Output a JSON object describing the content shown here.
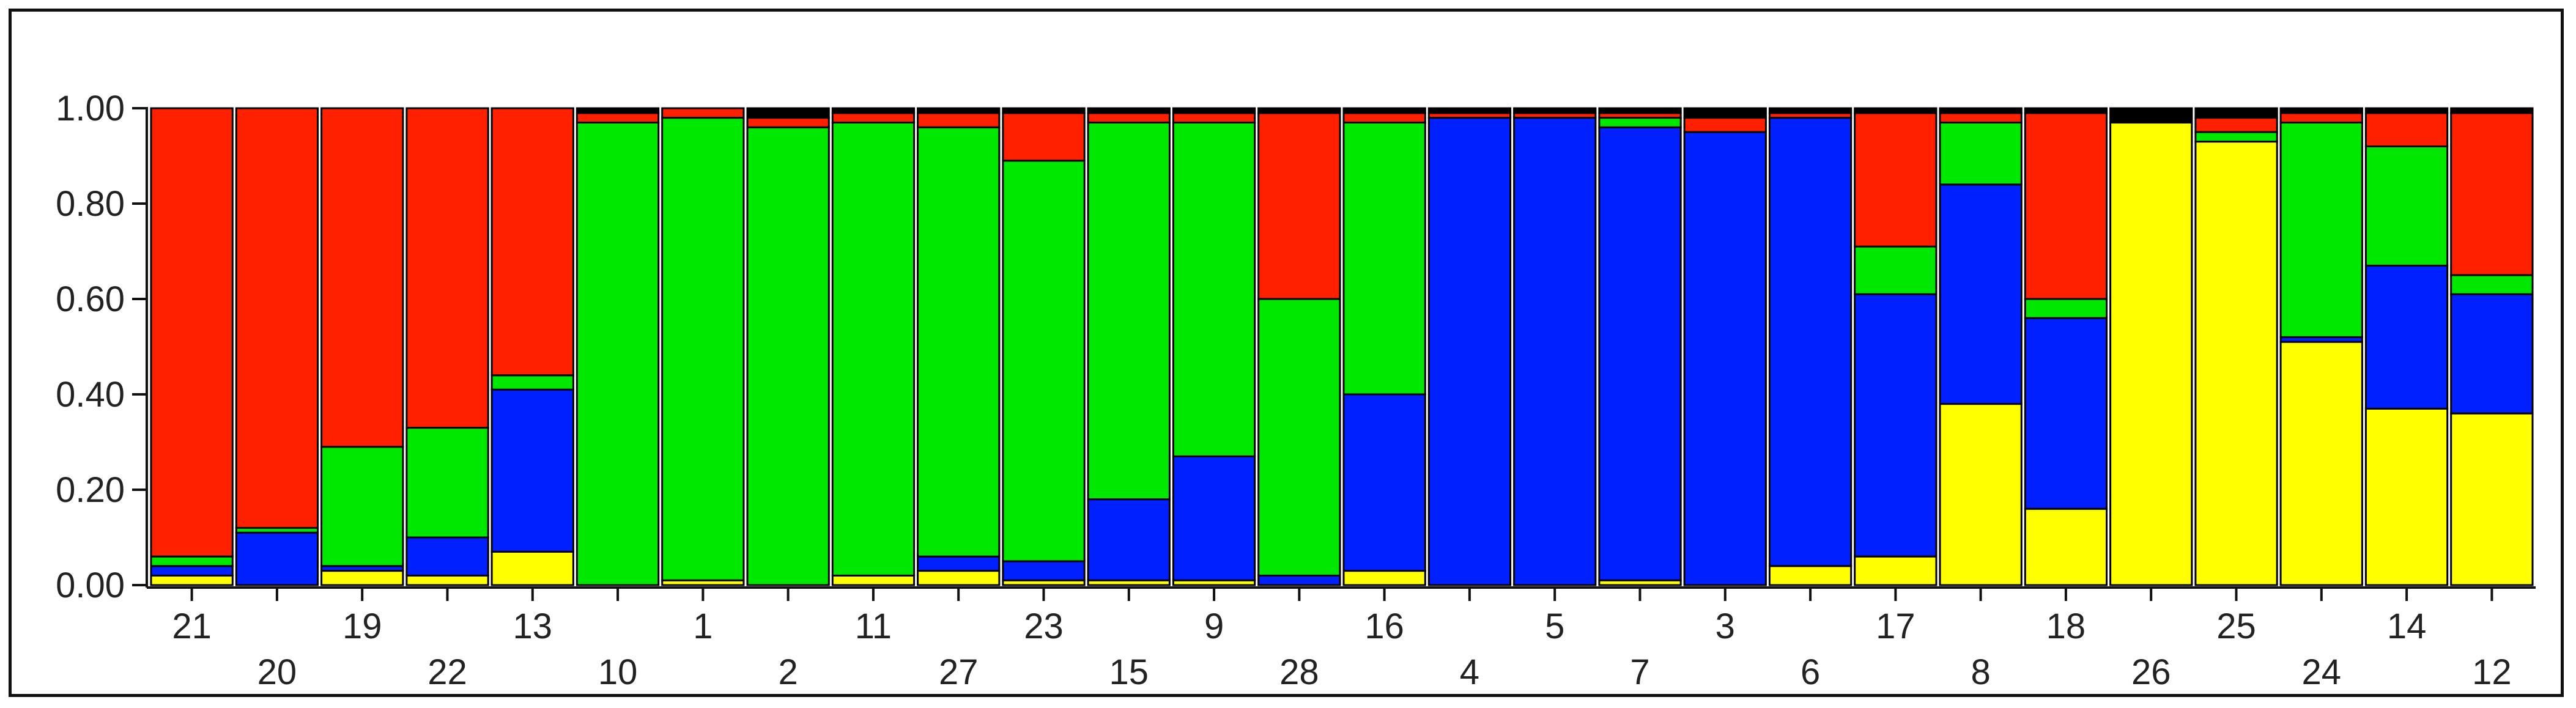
{
  "chart_data": {
    "type": "bar",
    "stacked": true,
    "title": "",
    "xlabel": "",
    "ylabel": "",
    "ylim": [
      0,
      1
    ],
    "yticks": [
      "0.00",
      "0.20",
      "0.40",
      "0.60",
      "0.80",
      "1.00"
    ],
    "grid": false,
    "legend": "none",
    "categories": [
      "21",
      "20",
      "19",
      "22",
      "13",
      "10",
      "1",
      "2",
      "11",
      "27",
      "23",
      "15",
      "9",
      "28",
      "16",
      "4",
      "5",
      "7",
      "3",
      "6",
      "17",
      "8",
      "18",
      "26",
      "25",
      "24",
      "14",
      "12"
    ],
    "series": [
      {
        "color": "#ffff00",
        "values": [
          0.02,
          0.0,
          0.03,
          0.02,
          0.07,
          0.0,
          0.01,
          0.0,
          0.02,
          0.03,
          0.01,
          0.01,
          0.01,
          0.0,
          0.03,
          0.0,
          0.0,
          0.01,
          0.0,
          0.04,
          0.06,
          0.38,
          0.16,
          0.97,
          0.93,
          0.51,
          0.37,
          0.36
        ]
      },
      {
        "color": "#0020ff",
        "values": [
          0.02,
          0.11,
          0.01,
          0.08,
          0.34,
          0.0,
          0.0,
          0.0,
          0.0,
          0.03,
          0.04,
          0.17,
          0.26,
          0.02,
          0.37,
          0.98,
          0.98,
          0.95,
          0.95,
          0.94,
          0.55,
          0.46,
          0.4,
          0.0,
          0.0,
          0.01,
          0.3,
          0.25
        ]
      },
      {
        "color": "#00e800",
        "values": [
          0.02,
          0.01,
          0.25,
          0.23,
          0.03,
          0.97,
          0.97,
          0.96,
          0.95,
          0.9,
          0.84,
          0.79,
          0.7,
          0.58,
          0.57,
          0.0,
          0.0,
          0.02,
          0.0,
          0.0,
          0.1,
          0.13,
          0.04,
          0.0,
          0.02,
          0.45,
          0.25,
          0.04
        ]
      },
      {
        "color": "#ff2000",
        "values": [
          0.94,
          0.88,
          0.71,
          0.67,
          0.56,
          0.02,
          0.02,
          0.02,
          0.02,
          0.03,
          0.1,
          0.02,
          0.02,
          0.39,
          0.02,
          0.01,
          0.01,
          0.01,
          0.03,
          0.01,
          0.28,
          0.02,
          0.39,
          0.0,
          0.03,
          0.02,
          0.07,
          0.34
        ]
      },
      {
        "color": "#000000",
        "values": [
          0.0,
          0.0,
          0.0,
          0.0,
          0.0,
          0.01,
          0.0,
          0.02,
          0.01,
          0.01,
          0.01,
          0.01,
          0.01,
          0.01,
          0.01,
          0.01,
          0.01,
          0.01,
          0.02,
          0.01,
          0.01,
          0.01,
          0.01,
          0.03,
          0.02,
          0.01,
          0.01,
          0.01
        ]
      }
    ]
  }
}
